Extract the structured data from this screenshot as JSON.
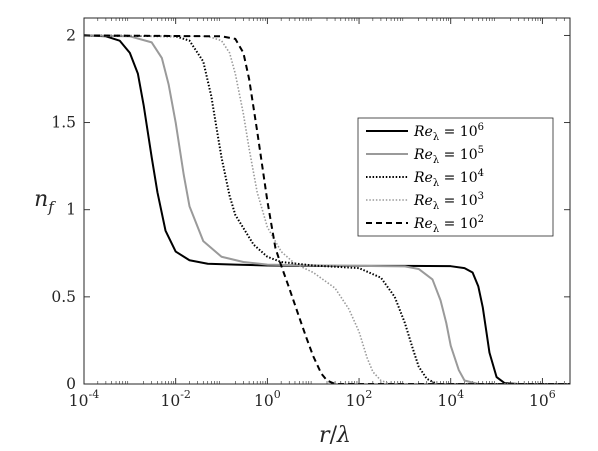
{
  "chart_data": {
    "type": "line",
    "xscale": "log",
    "xlim": [
      0.0001,
      4000000
    ],
    "ylim": [
      0,
      2.1
    ],
    "xlabel": {
      "base": "r",
      "sep": "/",
      "sym": "λ"
    },
    "ylabel": {
      "base": "n",
      "sub": "f"
    },
    "xticks": [
      {
        "value": 0.0001,
        "base": "10",
        "exp": "-4"
      },
      {
        "value": 0.01,
        "base": "10",
        "exp": "-2"
      },
      {
        "value": 1,
        "base": "10",
        "exp": "0"
      },
      {
        "value": 100,
        "base": "10",
        "exp": "2"
      },
      {
        "value": 10000,
        "base": "10",
        "exp": "4"
      },
      {
        "value": 1000000,
        "base": "10",
        "exp": "6"
      }
    ],
    "yticks": [
      {
        "value": 0,
        "label": "0"
      },
      {
        "value": 0.5,
        "label": "0.5"
      },
      {
        "value": 1,
        "label": "1"
      },
      {
        "value": 1.5,
        "label": "1.5"
      },
      {
        "value": 2,
        "label": "2"
      }
    ],
    "grid": false,
    "legend_position": "right",
    "series": [
      {
        "name": {
          "base": "Re",
          "sub": "λ",
          "eq": " = ",
          "pow": "10",
          "exp": "6"
        },
        "color": "#000000",
        "style": "solid",
        "width": 2.0,
        "points": [
          [
            0.0001,
            2
          ],
          [
            0.0003,
            1.995
          ],
          [
            0.0006,
            1.97
          ],
          [
            0.001,
            1.9
          ],
          [
            0.0015,
            1.78
          ],
          [
            0.002,
            1.6
          ],
          [
            0.003,
            1.3
          ],
          [
            0.004,
            1.1
          ],
          [
            0.006,
            0.88
          ],
          [
            0.01,
            0.76
          ],
          [
            0.02,
            0.71
          ],
          [
            0.05,
            0.69
          ],
          [
            0.2,
            0.685
          ],
          [
            1,
            0.68
          ],
          [
            10,
            0.678
          ],
          [
            100,
            0.678
          ],
          [
            1000,
            0.678
          ],
          [
            10000,
            0.676
          ],
          [
            20000,
            0.665
          ],
          [
            30000,
            0.64
          ],
          [
            40000,
            0.56
          ],
          [
            50000,
            0.44
          ],
          [
            60000,
            0.3
          ],
          [
            70000,
            0.18
          ],
          [
            100000,
            0.04
          ],
          [
            150000,
            0.005
          ],
          [
            300000,
            0
          ],
          [
            4000000,
            0
          ]
        ]
      },
      {
        "name": {
          "base": "Re",
          "sub": "λ",
          "eq": " = ",
          "pow": "10",
          "exp": "5"
        },
        "color": "#9a9a9a",
        "style": "solid",
        "width": 2.0,
        "points": [
          [
            0.0001,
            2
          ],
          [
            0.001,
            1.995
          ],
          [
            0.003,
            1.96
          ],
          [
            0.005,
            1.87
          ],
          [
            0.007,
            1.72
          ],
          [
            0.01,
            1.5
          ],
          [
            0.015,
            1.2
          ],
          [
            0.02,
            1.02
          ],
          [
            0.04,
            0.82
          ],
          [
            0.1,
            0.73
          ],
          [
            0.3,
            0.7
          ],
          [
            1,
            0.685
          ],
          [
            10,
            0.68
          ],
          [
            100,
            0.678
          ],
          [
            1000,
            0.675
          ],
          [
            2000,
            0.66
          ],
          [
            4000,
            0.6
          ],
          [
            6000,
            0.48
          ],
          [
            8000,
            0.35
          ],
          [
            10000,
            0.22
          ],
          [
            15000,
            0.08
          ],
          [
            20000,
            0.02
          ],
          [
            40000,
            0
          ],
          [
            4000000,
            0
          ]
        ]
      },
      {
        "name": {
          "base": "Re",
          "sub": "λ",
          "eq": " = ",
          "pow": "10",
          "exp": "4"
        },
        "color": "#000000",
        "style": "dotted",
        "width": 2.0,
        "points": [
          [
            0.0001,
            2
          ],
          [
            0.01,
            1.995
          ],
          [
            0.02,
            1.97
          ],
          [
            0.04,
            1.85
          ],
          [
            0.06,
            1.65
          ],
          [
            0.08,
            1.45
          ],
          [
            0.1,
            1.3
          ],
          [
            0.15,
            1.08
          ],
          [
            0.2,
            0.97
          ],
          [
            0.5,
            0.8
          ],
          [
            1,
            0.73
          ],
          [
            2,
            0.7
          ],
          [
            10,
            0.68
          ],
          [
            100,
            0.665
          ],
          [
            300,
            0.61
          ],
          [
            600,
            0.5
          ],
          [
            1000,
            0.35
          ],
          [
            1500,
            0.2
          ],
          [
            2000,
            0.1
          ],
          [
            3000,
            0.03
          ],
          [
            5000,
            0
          ],
          [
            4000000,
            0
          ]
        ]
      },
      {
        "name": {
          "base": "Re",
          "sub": "λ",
          "eq": " = ",
          "pow": "10",
          "exp": "3"
        },
        "color": "#9a9a9a",
        "style": "dotted",
        "width": 1.6,
        "points": [
          [
            0.0001,
            2
          ],
          [
            0.05,
            1.995
          ],
          [
            0.1,
            1.97
          ],
          [
            0.15,
            1.9
          ],
          [
            0.2,
            1.78
          ],
          [
            0.3,
            1.55
          ],
          [
            0.4,
            1.35
          ],
          [
            0.6,
            1.1
          ],
          [
            1,
            0.9
          ],
          [
            2,
            0.76
          ],
          [
            4,
            0.69
          ],
          [
            10,
            0.64
          ],
          [
            30,
            0.55
          ],
          [
            60,
            0.43
          ],
          [
            100,
            0.3
          ],
          [
            150,
            0.15
          ],
          [
            200,
            0.07
          ],
          [
            300,
            0.02
          ],
          [
            500,
            0
          ],
          [
            4000000,
            0
          ]
        ]
      },
      {
        "name": {
          "base": "Re",
          "sub": "λ",
          "eq": " = ",
          "pow": "10",
          "exp": "2"
        },
        "color": "#000000",
        "style": "dashed",
        "width": 2.0,
        "points": [
          [
            0.0001,
            2
          ],
          [
            0.1,
            1.995
          ],
          [
            0.2,
            1.98
          ],
          [
            0.3,
            1.9
          ],
          [
            0.4,
            1.75
          ],
          [
            0.6,
            1.45
          ],
          [
            1,
            1.05
          ],
          [
            1.5,
            0.78
          ],
          [
            2,
            0.68
          ],
          [
            3,
            0.55
          ],
          [
            5,
            0.38
          ],
          [
            7,
            0.27
          ],
          [
            10,
            0.16
          ],
          [
            15,
            0.06
          ],
          [
            20,
            0.02
          ],
          [
            30,
            0
          ],
          [
            4000000,
            0
          ]
        ]
      }
    ]
  }
}
